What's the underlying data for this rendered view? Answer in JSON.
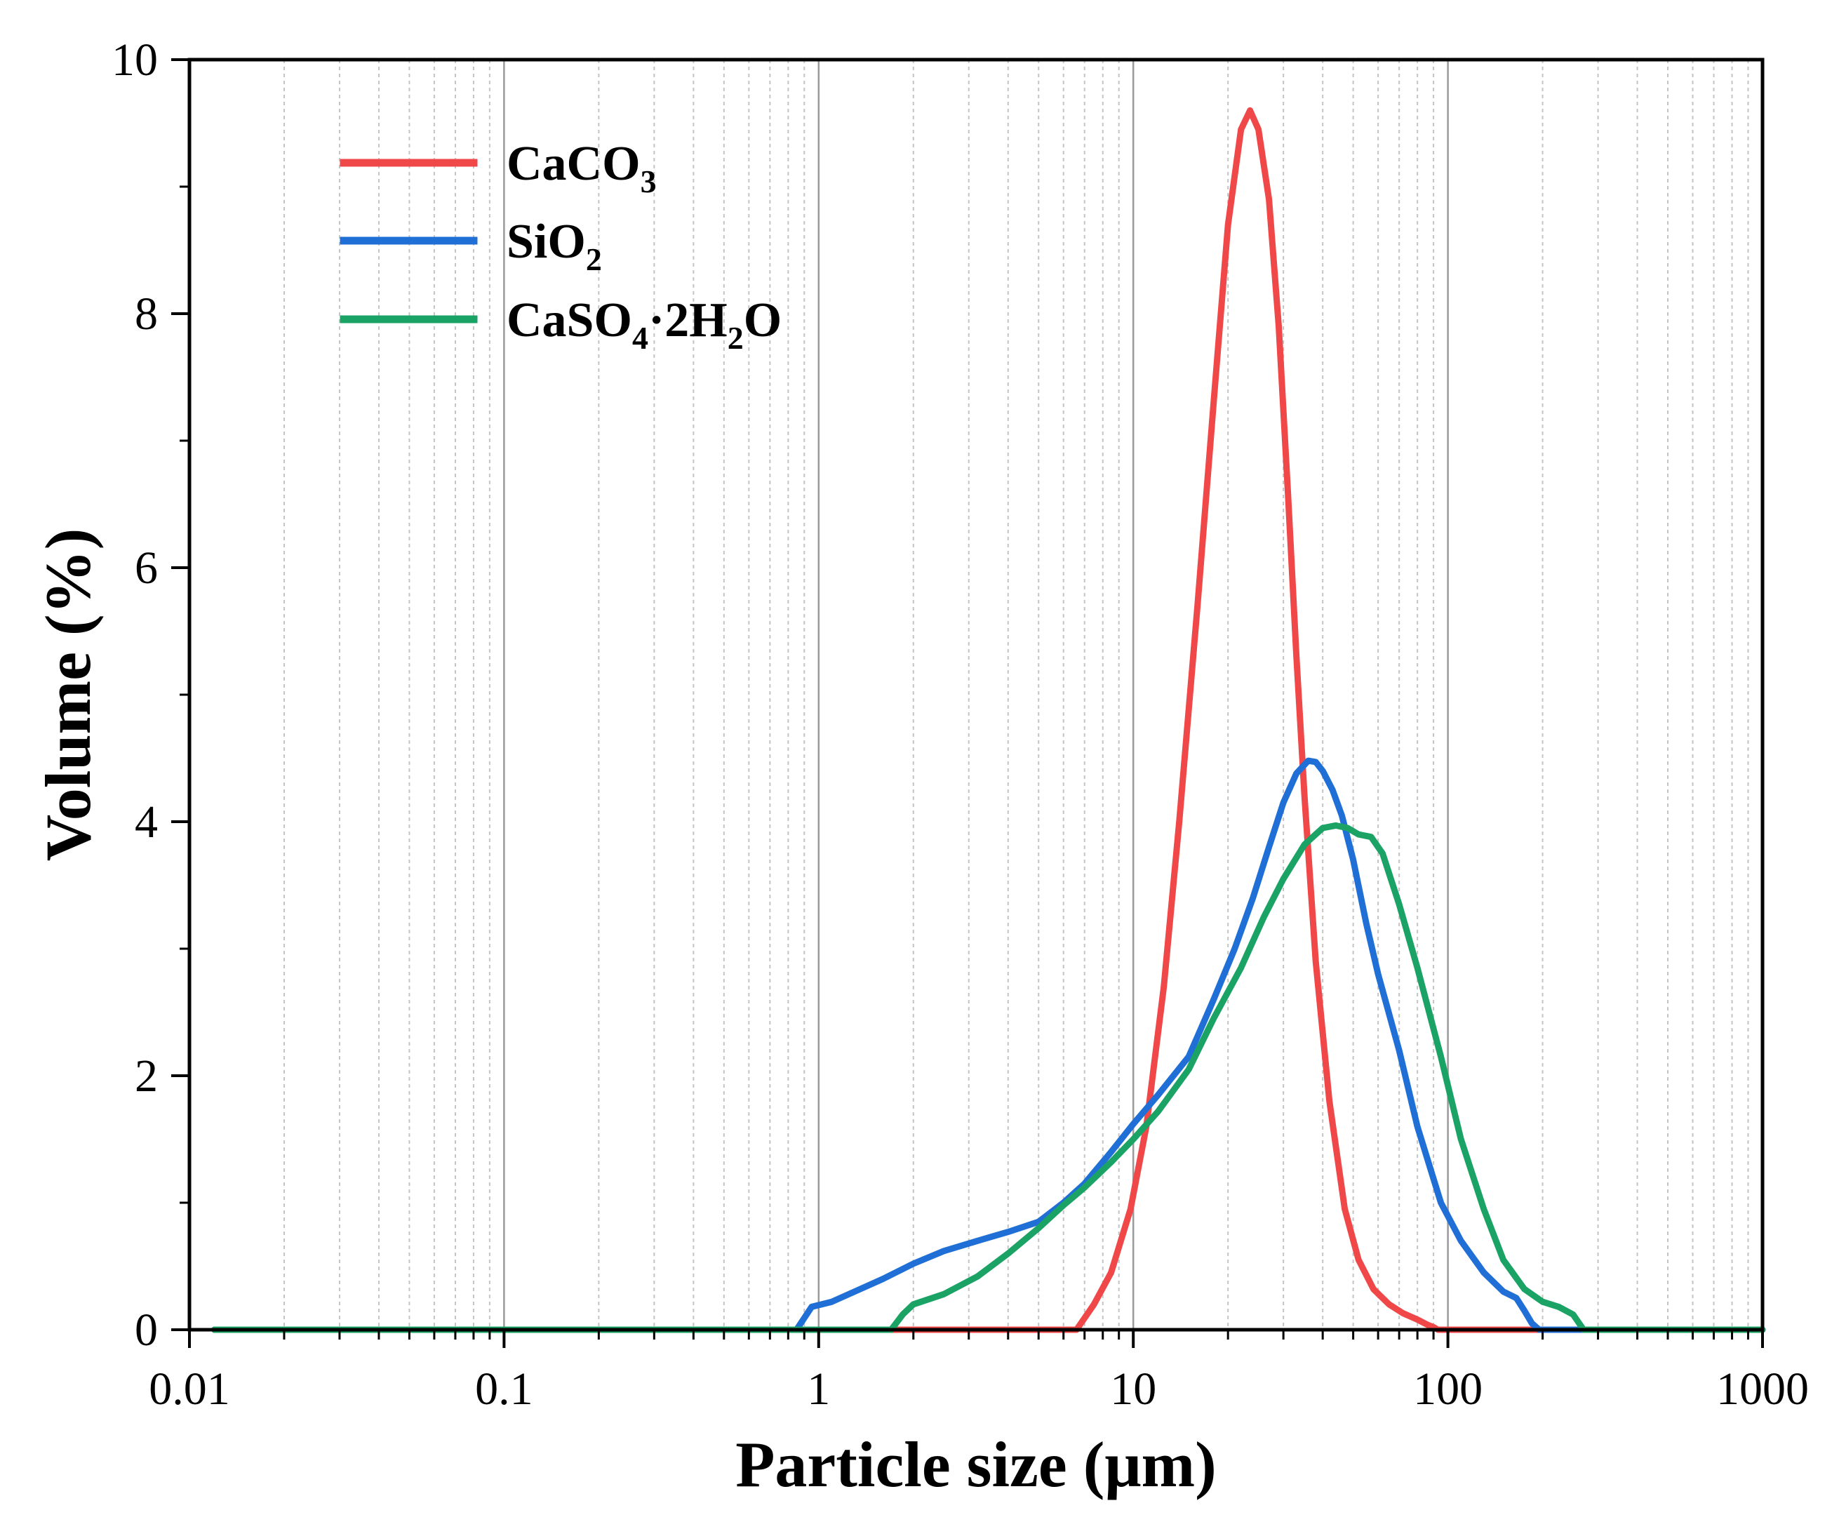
{
  "chart_data": {
    "type": "line",
    "xscale": "log",
    "xlabel": "Particle size (μm)",
    "ylabel": "Volume (%)",
    "xlim": [
      0.01,
      1000
    ],
    "ylim": [
      0,
      10
    ],
    "xticks": [
      {
        "value": 0.01,
        "label": "0.01"
      },
      {
        "value": 0.1,
        "label": "0.1"
      },
      {
        "value": 1,
        "label": "1"
      },
      {
        "value": 10,
        "label": "10"
      },
      {
        "value": 100,
        "label": "100"
      },
      {
        "value": 1000,
        "label": "1000"
      }
    ],
    "yticks": [
      {
        "value": 0,
        "label": "0"
      },
      {
        "value": 2,
        "label": "2"
      },
      {
        "value": 4,
        "label": "4"
      },
      {
        "value": 6,
        "label": "6"
      },
      {
        "value": 8,
        "label": "8"
      },
      {
        "value": 10,
        "label": "10"
      }
    ],
    "legend_position": "top-left",
    "grid": "vertical major and minor",
    "series": [
      {
        "name": "CaCO3",
        "legend": {
          "base": "CaCO",
          "sub": "3",
          "tail": ""
        },
        "color": "#f04848",
        "x": [
          0.012,
          6.6,
          7.5,
          8.5,
          9.8,
          11,
          12.5,
          14,
          16,
          18,
          20,
          22,
          23.5,
          25,
          27,
          29,
          31,
          33,
          35,
          38,
          42,
          47,
          52,
          58,
          65,
          72,
          80,
          86,
          90,
          93,
          1000
        ],
        "y": [
          0,
          0,
          0.2,
          0.45,
          0.95,
          1.6,
          2.7,
          4.0,
          5.7,
          7.3,
          8.7,
          9.45,
          9.6,
          9.45,
          8.9,
          7.9,
          6.6,
          5.3,
          4.2,
          2.9,
          1.8,
          0.95,
          0.55,
          0.32,
          0.2,
          0.13,
          0.08,
          0.04,
          0.02,
          0,
          0
        ]
      },
      {
        "name": "SiO2",
        "legend": {
          "base": "SiO",
          "sub": "2",
          "tail": ""
        },
        "color": "#1f6fd6",
        "x": [
          0.012,
          0.85,
          0.95,
          1.1,
          1.3,
          1.6,
          2.0,
          2.5,
          3.2,
          4.0,
          5.0,
          6.0,
          7.0,
          8.5,
          10,
          12,
          15,
          18,
          21,
          24,
          27,
          30,
          33,
          36,
          38,
          40,
          43,
          46,
          50,
          55,
          60,
          70,
          80,
          95,
          110,
          130,
          150,
          165,
          175,
          185,
          195,
          1000
        ],
        "y": [
          0,
          0,
          0.18,
          0.22,
          0.3,
          0.4,
          0.52,
          0.62,
          0.7,
          0.77,
          0.85,
          1.0,
          1.15,
          1.4,
          1.62,
          1.85,
          2.15,
          2.6,
          3.0,
          3.4,
          3.8,
          4.15,
          4.38,
          4.48,
          4.47,
          4.4,
          4.25,
          4.05,
          3.7,
          3.2,
          2.8,
          2.2,
          1.6,
          1.0,
          0.7,
          0.45,
          0.3,
          0.25,
          0.15,
          0.05,
          0,
          0
        ]
      },
      {
        "name": "CaSO4·2H2O",
        "legend": {
          "base": "CaSO",
          "sub": "4",
          "tail": "·2H",
          "sub2": "2",
          "tail2": "O"
        },
        "color": "#1aa364",
        "x": [
          0.012,
          1.7,
          1.85,
          2.0,
          2.5,
          3.2,
          4.0,
          5.0,
          6.0,
          7.0,
          8.5,
          10,
          12,
          15,
          18,
          22,
          26,
          30,
          35,
          40,
          44,
          48,
          52,
          57,
          62,
          70,
          80,
          95,
          110,
          130,
          150,
          175,
          200,
          225,
          250,
          270,
          1000
        ],
        "y": [
          0,
          0,
          0.12,
          0.2,
          0.28,
          0.42,
          0.6,
          0.8,
          0.98,
          1.12,
          1.32,
          1.5,
          1.72,
          2.05,
          2.45,
          2.85,
          3.25,
          3.55,
          3.82,
          3.95,
          3.97,
          3.95,
          3.9,
          3.88,
          3.75,
          3.35,
          2.85,
          2.15,
          1.5,
          0.95,
          0.55,
          0.32,
          0.22,
          0.18,
          0.12,
          0,
          0
        ]
      }
    ]
  }
}
